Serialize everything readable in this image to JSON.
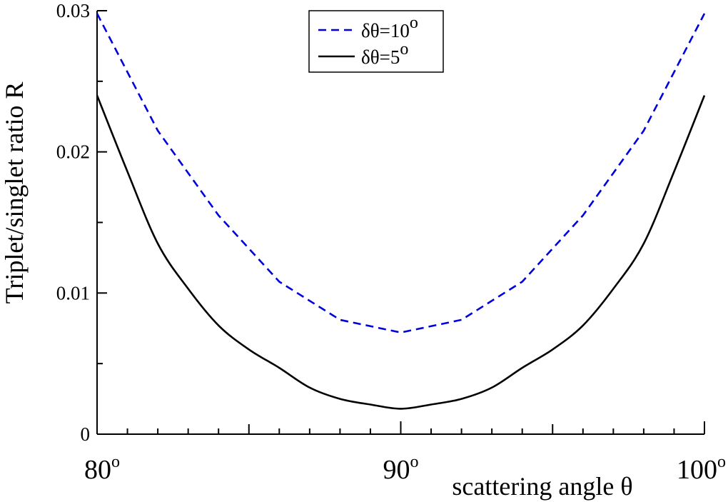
{
  "chart_data": {
    "type": "line",
    "xlabel": "scattering angle θ",
    "ylabel": "Triplet/singlet ratio R",
    "xlim": [
      80,
      100
    ],
    "ylim": [
      0,
      0.03
    ],
    "x_ticks": [
      80,
      90,
      100
    ],
    "x_tick_labels": [
      "80",
      "90",
      "100"
    ],
    "x_tick_superscript": "o",
    "y_ticks": [
      0,
      0.01,
      0.02,
      0.03
    ],
    "y_tick_labels": [
      "0",
      "0.01",
      "0.02",
      "0.03"
    ],
    "legend_position": "top-center",
    "series": [
      {
        "name": "δθ=10",
        "name_superscript": "o",
        "color": "#0000dd",
        "style": "dashed",
        "x": [
          80,
          82,
          84,
          86,
          88,
          90,
          92,
          94,
          96,
          98,
          100
        ],
        "y": [
          0.0298,
          0.0215,
          0.0155,
          0.0108,
          0.0081,
          0.0072,
          0.0081,
          0.0108,
          0.0155,
          0.0215,
          0.0298
        ]
      },
      {
        "name": "δθ=5",
        "name_superscript": "o",
        "color": "#000000",
        "style": "solid",
        "x": [
          80,
          81,
          82,
          83,
          84,
          85,
          86,
          87,
          88,
          89,
          90,
          91,
          92,
          93,
          94,
          95,
          96,
          97,
          98,
          99,
          100
        ],
        "y": [
          0.024,
          0.0186,
          0.0135,
          0.0103,
          0.0077,
          0.006,
          0.0047,
          0.0033,
          0.0025,
          0.0021,
          0.0018,
          0.0021,
          0.0025,
          0.0033,
          0.0047,
          0.006,
          0.0077,
          0.0103,
          0.0135,
          0.0186,
          0.024
        ]
      }
    ]
  }
}
